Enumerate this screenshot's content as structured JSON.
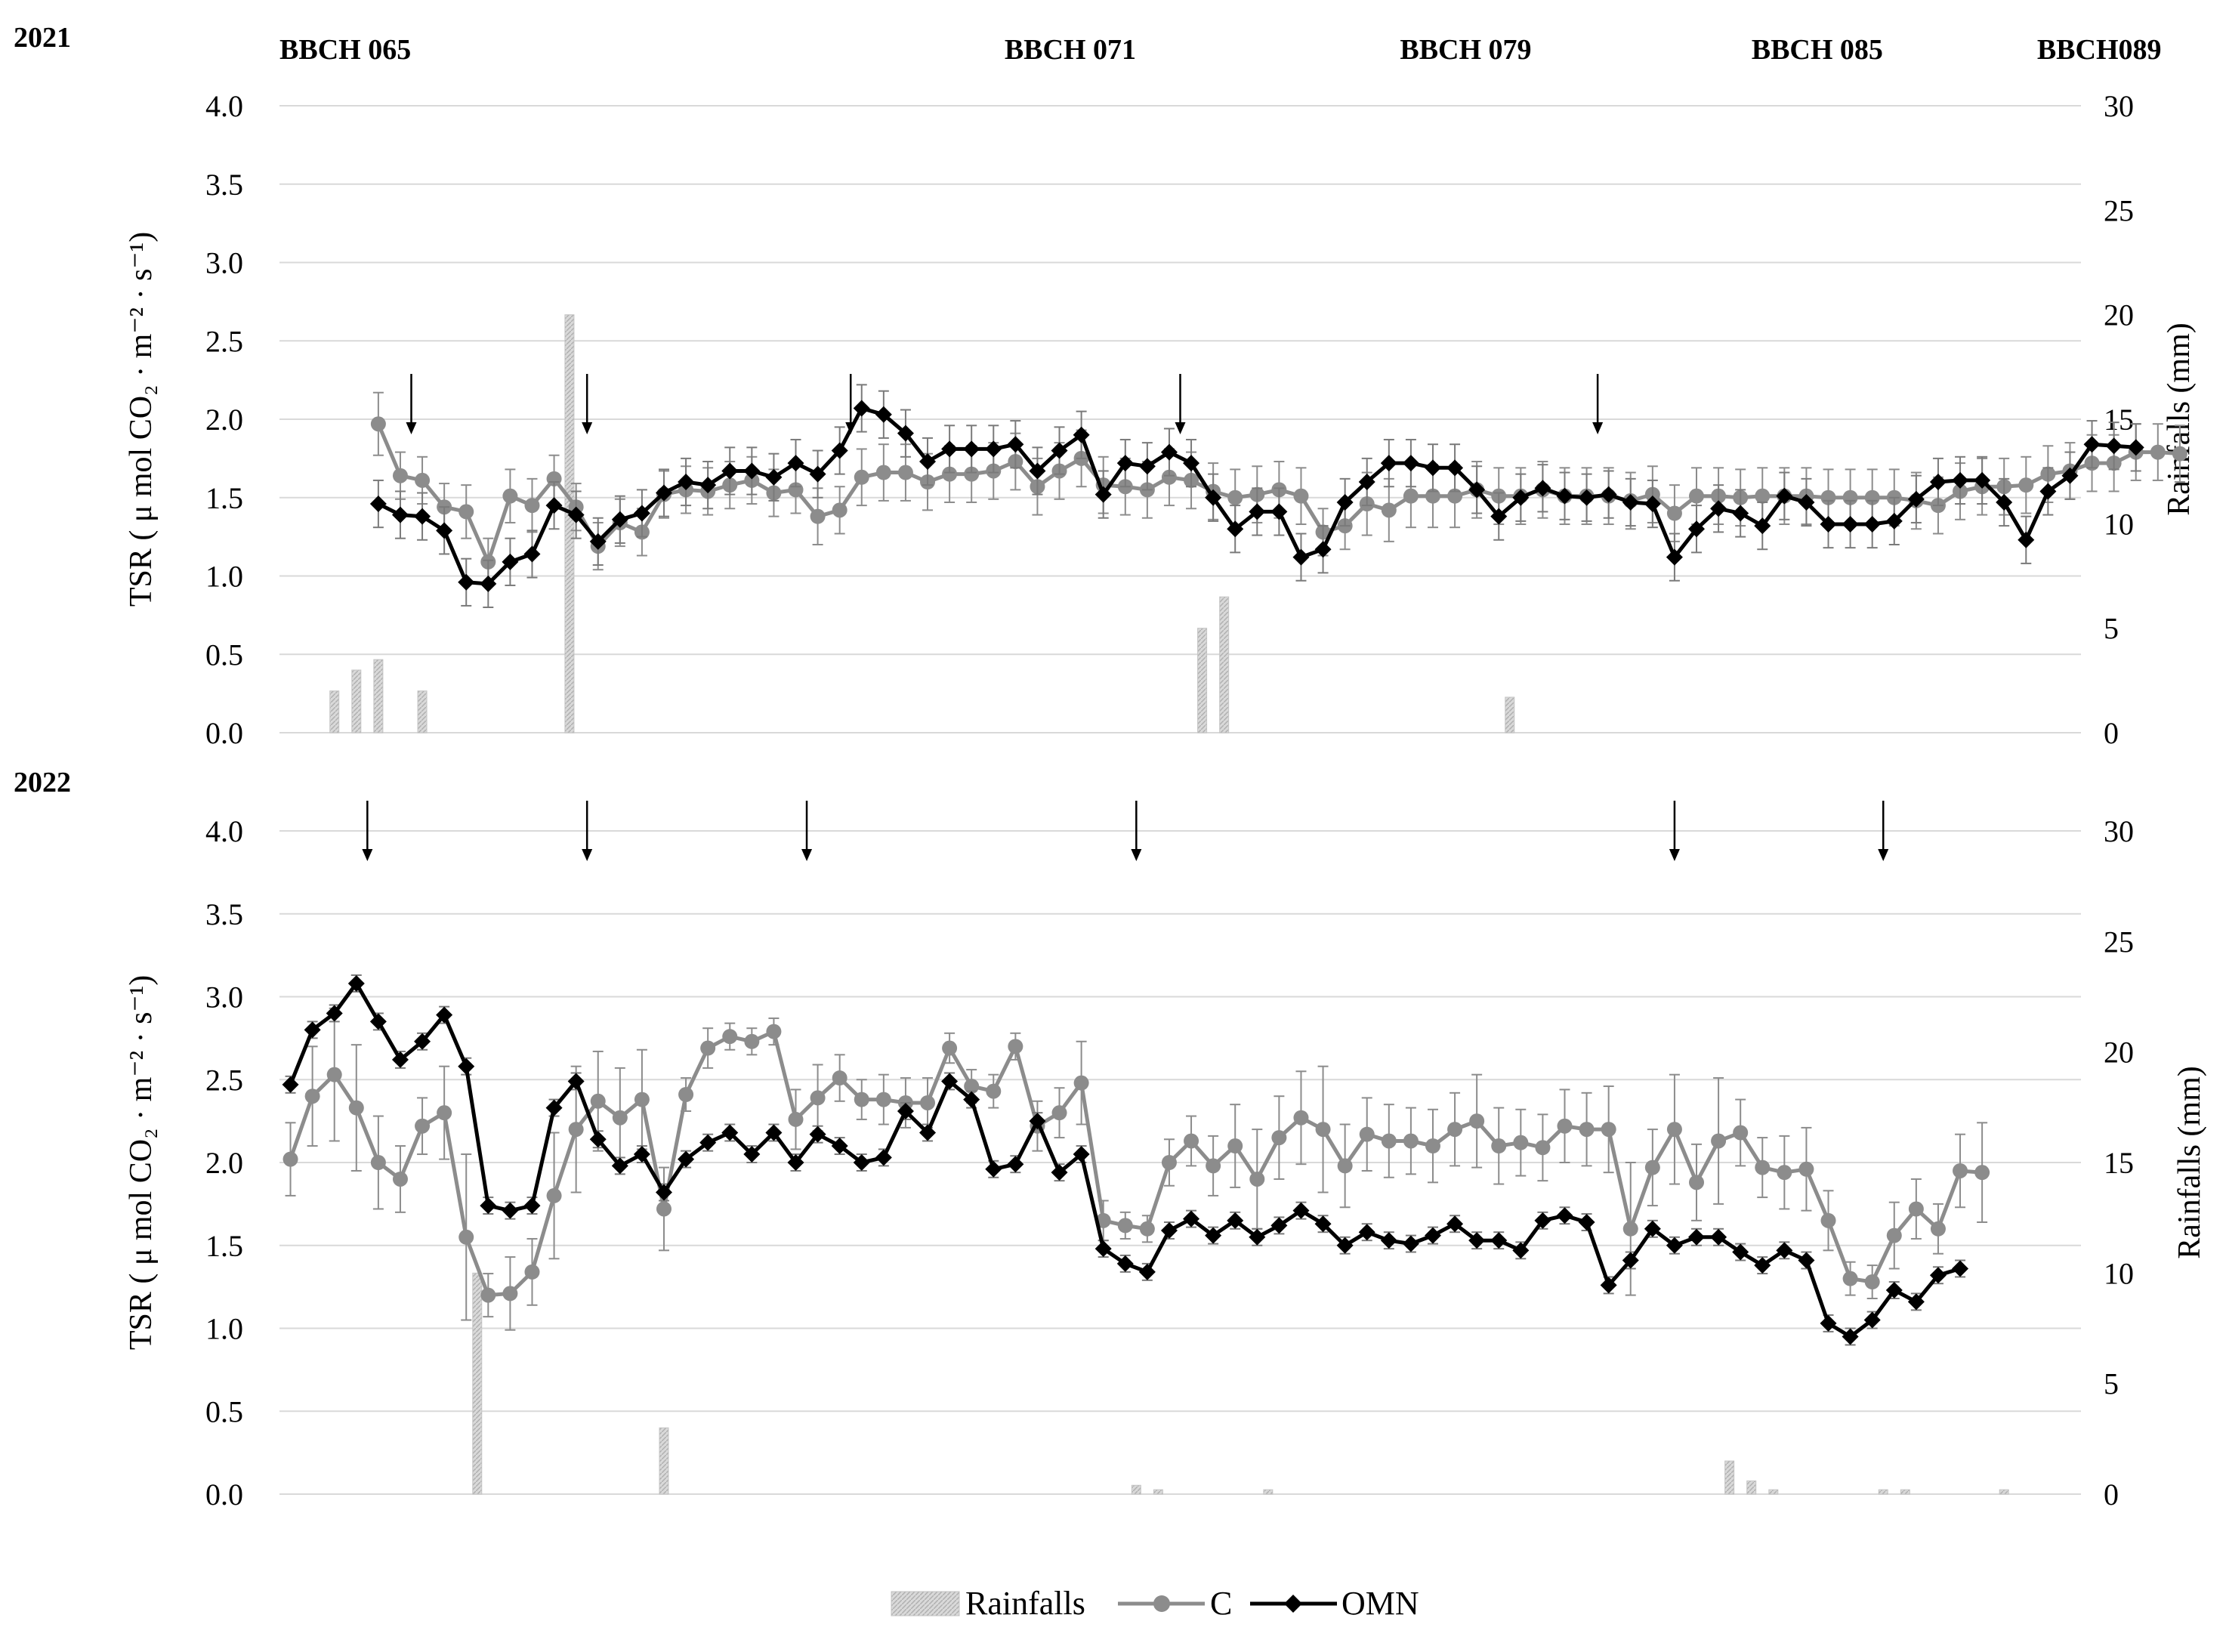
{
  "legend": [
    {
      "name": "Rainfalls",
      "color": "#c4c4c4"
    },
    {
      "name": "C",
      "color": "#8c8c8c"
    },
    {
      "name": "OMN",
      "color": "#000000"
    }
  ],
  "chart_data": [
    {
      "type": "line",
      "year_label": "2021",
      "stage_labels": [
        {
          "label": "BBCH 065",
          "at": 0
        },
        {
          "label": "BBCH 071",
          "at": 33
        },
        {
          "label": "BBCH 079",
          "at": 51
        },
        {
          "label": "BBCH 085",
          "at": 67
        },
        {
          "label": "BBCH089",
          "at": 80
        }
      ],
      "ylabel": "TSR ( μ mol CO₂ · m⁻² · s⁻¹)",
      "y2label": "Rainfalls (mm)",
      "ylim": [
        0,
        4
      ],
      "y2lim": [
        0,
        30
      ],
      "yticks": [
        "0.0",
        "0.5",
        "1.0",
        "1.5",
        "2.0",
        "2.5",
        "3.0",
        "3.5",
        "4.0"
      ],
      "y2ticks": [
        "0",
        "5",
        "10",
        "15",
        "20",
        "25",
        "30"
      ],
      "x_range": [
        0,
        82
      ],
      "grid": true,
      "legend_position": "bottom",
      "arrows_at": [
        6,
        14,
        26,
        41,
        60
      ],
      "rainfall": [
        {
          "x": 2.5,
          "mm": 2.0
        },
        {
          "x": 3.5,
          "mm": 3.0
        },
        {
          "x": 4.5,
          "mm": 3.5
        },
        {
          "x": 6.5,
          "mm": 2.0
        },
        {
          "x": 13.2,
          "mm": 20.0
        },
        {
          "x": 42.0,
          "mm": 5.0
        },
        {
          "x": 43.0,
          "mm": 6.5
        },
        {
          "x": 56.0,
          "mm": 1.7
        }
      ],
      "series": [
        {
          "name": "C",
          "x_start": 4.5,
          "values": [
            1.97,
            1.64,
            1.61,
            1.44,
            1.41,
            1.09,
            1.51,
            1.45,
            1.62,
            1.44,
            1.19,
            1.34,
            1.28,
            1.52,
            1.55,
            1.54,
            1.58,
            1.61,
            1.53,
            1.55,
            1.38,
            1.42,
            1.63,
            1.66,
            1.66,
            1.6,
            1.65,
            1.65,
            1.67,
            1.73,
            1.57,
            1.67,
            1.75,
            1.58,
            1.57,
            1.55,
            1.63,
            1.61,
            1.54,
            1.5,
            1.52,
            1.55,
            1.51,
            1.28,
            1.32,
            1.46,
            1.42,
            1.51,
            1.51,
            1.51,
            1.55,
            1.51,
            1.51,
            1.55,
            1.51,
            1.51,
            1.51,
            1.48,
            1.52,
            1.4,
            1.51,
            1.51,
            1.5,
            1.51,
            1.51,
            1.51,
            1.5,
            1.5,
            1.5,
            1.5,
            1.48,
            1.45,
            1.54,
            1.57,
            1.57,
            1.58,
            1.65,
            1.67,
            1.72,
            1.72,
            1.79,
            1.79,
            1.78
          ],
          "errors": [
            0.2,
            0.15,
            0.15,
            0.15,
            0.17,
            0.15,
            0.17,
            0.17,
            0.15,
            0.15,
            0.15,
            0.15,
            0.15,
            0.15,
            0.15,
            0.15,
            0.15,
            0.15,
            0.15,
            0.15,
            0.18,
            0.15,
            0.18,
            0.18,
            0.18,
            0.18,
            0.18,
            0.18,
            0.18,
            0.18,
            0.18,
            0.18,
            0.18,
            0.18,
            0.18,
            0.18,
            0.18,
            0.18,
            0.18,
            0.18,
            0.18,
            0.18,
            0.18,
            0.15,
            0.15,
            0.2,
            0.2,
            0.2,
            0.2,
            0.2,
            0.18,
            0.18,
            0.18,
            0.18,
            0.18,
            0.18,
            0.18,
            0.18,
            0.18,
            0.18,
            0.18,
            0.18,
            0.18,
            0.18,
            0.18,
            0.18,
            0.18,
            0.18,
            0.18,
            0.18,
            0.18,
            0.18,
            0.18,
            0.18,
            0.18,
            0.18,
            0.18,
            0.18,
            0.18,
            0.18,
            0.18,
            0.18,
            0.18
          ]
        },
        {
          "name": "OMN",
          "x_start": 4.5,
          "values": [
            1.46,
            1.39,
            1.38,
            1.29,
            0.96,
            0.95,
            1.09,
            1.14,
            1.45,
            1.39,
            1.22,
            1.36,
            1.4,
            1.53,
            1.6,
            1.58,
            1.67,
            1.67,
            1.63,
            1.72,
            1.65,
            1.8,
            2.07,
            2.03,
            1.91,
            1.73,
            1.81,
            1.81,
            1.81,
            1.84,
            1.67,
            1.8,
            1.9,
            1.52,
            1.72,
            1.7,
            1.79,
            1.72,
            1.5,
            1.3,
            1.41,
            1.41,
            1.12,
            1.17,
            1.47,
            1.6,
            1.72,
            1.72,
            1.69,
            1.69,
            1.55,
            1.38,
            1.5,
            1.56,
            1.51,
            1.5,
            1.52,
            1.47,
            1.46,
            1.12,
            1.3,
            1.43,
            1.4,
            1.32,
            1.51,
            1.47,
            1.33,
            1.33,
            1.33,
            1.35,
            1.49,
            1.6,
            1.61,
            1.61,
            1.47,
            1.23,
            1.54,
            1.64,
            1.84,
            1.83,
            1.82
          ],
          "errors": [
            0.15,
            0.15,
            0.15,
            0.15,
            0.15,
            0.15,
            0.15,
            0.15,
            0.15,
            0.15,
            0.15,
            0.15,
            0.15,
            0.15,
            0.15,
            0.15,
            0.15,
            0.15,
            0.15,
            0.15,
            0.15,
            0.15,
            0.15,
            0.15,
            0.15,
            0.15,
            0.15,
            0.15,
            0.15,
            0.15,
            0.15,
            0.15,
            0.15,
            0.15,
            0.15,
            0.15,
            0.15,
            0.15,
            0.15,
            0.15,
            0.15,
            0.15,
            0.15,
            0.15,
            0.15,
            0.15,
            0.15,
            0.15,
            0.15,
            0.15,
            0.15,
            0.15,
            0.15,
            0.15,
            0.15,
            0.15,
            0.15,
            0.15,
            0.15,
            0.15,
            0.15,
            0.15,
            0.15,
            0.15,
            0.15,
            0.15,
            0.15,
            0.15,
            0.15,
            0.15,
            0.15,
            0.15,
            0.15,
            0.15,
            0.15,
            0.15,
            0.15,
            0.15,
            0.15,
            0.15,
            0.15
          ]
        }
      ]
    },
    {
      "type": "line",
      "year_label": "2022",
      "ylabel": "TSR ( μ mol CO₂ · m⁻² · s⁻¹)",
      "y2label": "Rainfalls (mm)",
      "ylim": [
        0,
        4
      ],
      "y2lim": [
        0,
        30
      ],
      "yticks": [
        "0.0",
        "0.5",
        "1.0",
        "1.5",
        "2.0",
        "2.5",
        "3.0",
        "3.5",
        "4.0"
      ],
      "y2ticks": [
        "0",
        "5",
        "10",
        "15",
        "20",
        "25",
        "30"
      ],
      "x_range": [
        0,
        82
      ],
      "grid": true,
      "legend_position": "bottom",
      "arrows_at": [
        4,
        14,
        24,
        39,
        63.5,
        73
      ],
      "rainfall": [
        {
          "x": 9.0,
          "mm": 10.0
        },
        {
          "x": 17.5,
          "mm": 3.0
        },
        {
          "x": 39.0,
          "mm": 0.4
        },
        {
          "x": 40.0,
          "mm": 0.2
        },
        {
          "x": 45.0,
          "mm": 0.2
        },
        {
          "x": 66.0,
          "mm": 1.5
        },
        {
          "x": 67.0,
          "mm": 0.6
        },
        {
          "x": 68.0,
          "mm": 0.2
        },
        {
          "x": 73.0,
          "mm": 0.2
        },
        {
          "x": 74.0,
          "mm": 0.2
        },
        {
          "x": 78.5,
          "mm": 0.2
        }
      ],
      "series": [
        {
          "name": "C",
          "x_start": 0.5,
          "values": [
            2.02,
            2.4,
            2.53,
            2.33,
            2.0,
            1.9,
            2.22,
            2.3,
            1.55,
            1.2,
            1.21,
            1.34,
            1.8,
            2.2,
            2.37,
            2.27,
            2.38,
            1.72,
            2.41,
            2.69,
            2.76,
            2.73,
            2.79,
            2.26,
            2.39,
            2.51,
            2.38,
            2.38,
            2.36,
            2.36,
            2.69,
            2.46,
            2.43,
            2.7,
            2.22,
            2.3,
            2.48,
            1.65,
            1.62,
            1.6,
            2.0,
            2.13,
            1.98,
            2.1,
            1.9,
            2.15,
            2.27,
            2.2,
            1.98,
            2.17,
            2.13,
            2.13,
            2.1,
            2.2,
            2.25,
            2.1,
            2.12,
            2.09,
            2.22,
            2.2,
            2.2,
            1.6,
            1.97,
            2.2,
            1.88,
            2.13,
            2.18,
            1.97,
            1.94,
            1.96,
            1.65,
            1.3,
            1.28,
            1.56,
            1.72,
            1.6,
            1.95,
            1.94
          ],
          "errors": [
            0.22,
            0.3,
            0.4,
            0.38,
            0.28,
            0.2,
            0.17,
            0.28,
            0.5,
            0.13,
            0.22,
            0.2,
            0.38,
            0.38,
            0.3,
            0.3,
            0.3,
            0.25,
            0.1,
            0.12,
            0.08,
            0.08,
            0.08,
            0.18,
            0.2,
            0.14,
            0.12,
            0.15,
            0.15,
            0.15,
            0.09,
            0.1,
            0.1,
            0.08,
            0.15,
            0.15,
            0.25,
            0.12,
            0.08,
            0.08,
            0.14,
            0.15,
            0.18,
            0.25,
            0.3,
            0.25,
            0.28,
            0.38,
            0.25,
            0.22,
            0.22,
            0.2,
            0.22,
            0.22,
            0.28,
            0.23,
            0.2,
            0.2,
            0.22,
            0.22,
            0.26,
            0.4,
            0.23,
            0.33,
            0.23,
            0.38,
            0.2,
            0.18,
            0.22,
            0.25,
            0.18,
            0.1,
            0.1,
            0.2,
            0.18,
            0.15,
            0.22,
            0.3
          ]
        },
        {
          "name": "OMN",
          "x_start": 0.5,
          "values": [
            2.47,
            2.8,
            2.9,
            3.08,
            2.85,
            2.62,
            2.73,
            2.89,
            2.58,
            1.74,
            1.71,
            1.74,
            2.33,
            2.49,
            2.14,
            1.98,
            2.05,
            1.82,
            2.02,
            2.12,
            2.18,
            2.05,
            2.18,
            2.0,
            2.17,
            2.1,
            2.0,
            2.03,
            2.31,
            2.18,
            2.49,
            2.38,
            1.96,
            1.99,
            2.25,
            1.94,
            2.05,
            1.48,
            1.39,
            1.34,
            1.59,
            1.66,
            1.56,
            1.65,
            1.55,
            1.62,
            1.71,
            1.63,
            1.5,
            1.58,
            1.53,
            1.51,
            1.56,
            1.63,
            1.53,
            1.53,
            1.47,
            1.65,
            1.68,
            1.64,
            1.26,
            1.41,
            1.6,
            1.5,
            1.55,
            1.55,
            1.46,
            1.38,
            1.47,
            1.41,
            1.03,
            0.95,
            1.05,
            1.23,
            1.16,
            1.32,
            1.36
          ],
          "errors": [
            0.05,
            0.05,
            0.05,
            0.05,
            0.05,
            0.05,
            0.05,
            0.05,
            0.05,
            0.05,
            0.05,
            0.05,
            0.05,
            0.05,
            0.05,
            0.05,
            0.05,
            0.05,
            0.05,
            0.05,
            0.05,
            0.05,
            0.05,
            0.05,
            0.05,
            0.05,
            0.05,
            0.05,
            0.05,
            0.05,
            0.05,
            0.05,
            0.05,
            0.05,
            0.05,
            0.05,
            0.05,
            0.05,
            0.05,
            0.05,
            0.05,
            0.05,
            0.05,
            0.05,
            0.05,
            0.05,
            0.05,
            0.05,
            0.05,
            0.05,
            0.05,
            0.05,
            0.05,
            0.05,
            0.05,
            0.05,
            0.05,
            0.05,
            0.05,
            0.05,
            0.05,
            0.05,
            0.05,
            0.05,
            0.05,
            0.05,
            0.05,
            0.05,
            0.05,
            0.05,
            0.05,
            0.05,
            0.05,
            0.05,
            0.05,
            0.05,
            0.05
          ]
        }
      ]
    }
  ]
}
